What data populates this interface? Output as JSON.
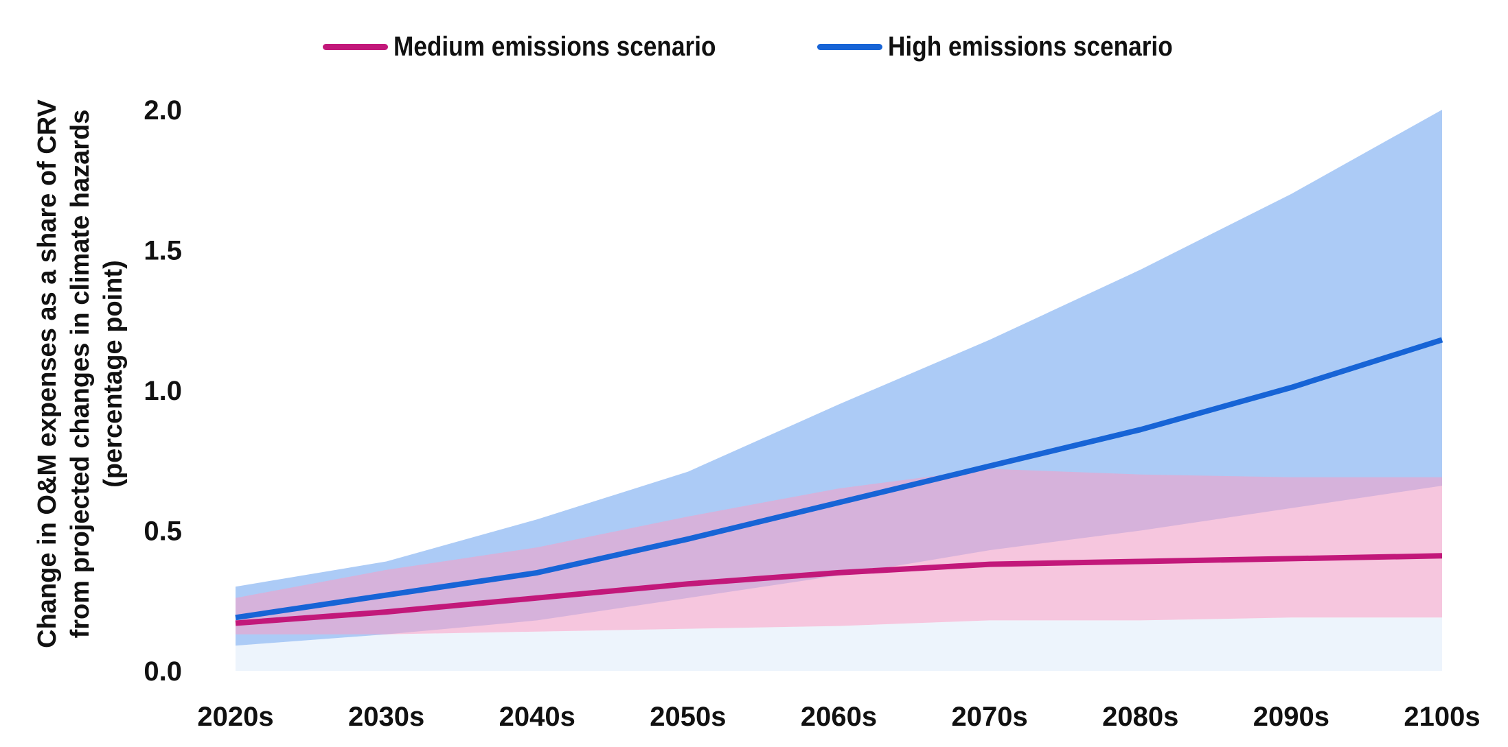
{
  "chart_data": {
    "type": "area",
    "categories": [
      "2020s",
      "2030s",
      "2040s",
      "2050s",
      "2060s",
      "2070s",
      "2080s",
      "2090s",
      "2100s"
    ],
    "ylabel_lines": [
      "Change in O&M expenses as a share of CRV",
      "from projected changes in climate hazards",
      "(percentage point)"
    ],
    "ylim": [
      0,
      2.0
    ],
    "yticks": [
      "0.0",
      "0.5",
      "1.0",
      "1.5",
      "2.0"
    ],
    "ytick_values": [
      0,
      0.5,
      1.0,
      1.5,
      2.0
    ],
    "legend_position": "top",
    "grid": false,
    "series": [
      {
        "name": "Medium emissions scenario",
        "color": "#C2187A",
        "band_color": "#F0A3C9",
        "values": [
          0.17,
          0.21,
          0.26,
          0.31,
          0.35,
          0.38,
          0.39,
          0.4,
          0.41
        ],
        "lower": [
          0.13,
          0.13,
          0.14,
          0.15,
          0.16,
          0.18,
          0.18,
          0.19,
          0.19
        ],
        "upper": [
          0.26,
          0.36,
          0.44,
          0.55,
          0.65,
          0.72,
          0.7,
          0.69,
          0.69
        ]
      },
      {
        "name": "High emissions scenario",
        "color": "#1764D6",
        "band_color": "#A8C8F5",
        "values": [
          0.19,
          0.27,
          0.35,
          0.47,
          0.6,
          0.73,
          0.86,
          1.01,
          1.18
        ],
        "lower": [
          0.09,
          0.13,
          0.18,
          0.26,
          0.34,
          0.43,
          0.5,
          0.58,
          0.66
        ],
        "upper": [
          0.3,
          0.39,
          0.54,
          0.71,
          0.95,
          1.18,
          1.43,
          1.7,
          2.0
        ]
      }
    ],
    "baseline_band": {
      "color": "#EDF4FC",
      "values": [
        0.09,
        0.13,
        0.14,
        0.15,
        0.16,
        0.18,
        0.18,
        0.19,
        0.19
      ]
    }
  }
}
